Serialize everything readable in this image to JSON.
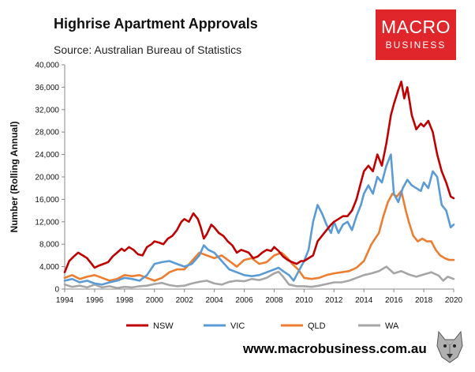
{
  "header": {
    "title": "Highrise Apartment Approvals",
    "source": "Source: Australian Bureau of Statistics"
  },
  "logo": {
    "line1": "MACRO",
    "line2": "BUSINESS",
    "color": "#e0262b"
  },
  "footer": {
    "url": "www.macrobusiness.com.au"
  },
  "chart_data": {
    "type": "line",
    "title": "Highrise Apartment Approvals",
    "xlabel": "",
    "ylabel": "Number (Rolling Annual)",
    "xlim": [
      1994,
      2020
    ],
    "ylim": [
      0,
      40000
    ],
    "yticks": [
      0,
      4000,
      8000,
      12000,
      16000,
      20000,
      24000,
      28000,
      32000,
      36000,
      40000
    ],
    "yticklabels": [
      "0",
      "4,000",
      "8,000",
      "12,000",
      "16,000",
      "20,000",
      "24,000",
      "28,000",
      "32,000",
      "36,000",
      "40,000"
    ],
    "xticks": [
      1994,
      1996,
      1998,
      2000,
      2002,
      2004,
      2006,
      2008,
      2010,
      2012,
      2014,
      2016,
      2018,
      2020
    ],
    "xticklabels": [
      "1994",
      "1996",
      "1998",
      "2000",
      "2002",
      "2004",
      "2006",
      "2008",
      "2010",
      "2012",
      "2014",
      "2016",
      "2018",
      "2020"
    ],
    "grid": false,
    "legend_position": "bottom",
    "series": [
      {
        "name": "NSW",
        "color": "#c00000",
        "x": [
          1994.0,
          1994.3,
          1994.6,
          1994.9,
          1995.2,
          1995.5,
          1995.8,
          1996.0,
          1996.3,
          1996.6,
          1996.9,
          1997.2,
          1997.5,
          1997.8,
          1998.0,
          1998.3,
          1998.6,
          1998.9,
          1999.2,
          1999.5,
          1999.8,
          2000.0,
          2000.3,
          2000.6,
          2000.9,
          2001.2,
          2001.5,
          2001.8,
          2002.0,
          2002.3,
          2002.6,
          2002.9,
          2003.1,
          2003.3,
          2003.5,
          2003.8,
          2004.0,
          2004.3,
          2004.6,
          2004.9,
          2005.2,
          2005.5,
          2005.8,
          2006.0,
          2006.3,
          2006.6,
          2006.9,
          2007.2,
          2007.5,
          2007.8,
          2008.0,
          2008.3,
          2008.6,
          2008.9,
          2009.2,
          2009.5,
          2009.8,
          2010.0,
          2010.3,
          2010.6,
          2010.9,
          2011.2,
          2011.5,
          2011.8,
          2012.0,
          2012.3,
          2012.6,
          2012.9,
          2013.2,
          2013.5,
          2013.8,
          2014.0,
          2014.3,
          2014.6,
          2014.9,
          2015.2,
          2015.5,
          2015.8,
          2016.0,
          2016.3,
          2016.5,
          2016.7,
          2016.9,
          2017.2,
          2017.5,
          2017.8,
          2018.0,
          2018.3,
          2018.6,
          2018.9,
          2019.2,
          2019.5,
          2019.8,
          2020.0
        ],
        "values": [
          3000,
          5000,
          5800,
          6500,
          6000,
          5500,
          4500,
          3800,
          4200,
          4500,
          4800,
          5800,
          6500,
          7200,
          6800,
          7500,
          7000,
          6200,
          6000,
          7500,
          8000,
          8500,
          8300,
          8000,
          9000,
          9500,
          10500,
          12000,
          12500,
          12000,
          13500,
          12500,
          11000,
          9000,
          9800,
          11500,
          11000,
          10000,
          9500,
          8500,
          7800,
          6500,
          7000,
          6800,
          6500,
          5500,
          5800,
          6500,
          7000,
          6800,
          7500,
          6800,
          5800,
          5200,
          4800,
          4500,
          5000,
          5000,
          5500,
          6000,
          8500,
          9500,
          10500,
          11500,
          12000,
          12500,
          13000,
          13000,
          14000,
          16000,
          19000,
          21000,
          22000,
          21000,
          24000,
          22000,
          26000,
          31000,
          33000,
          35500,
          37000,
          34000,
          36000,
          31000,
          28500,
          29500,
          29000,
          30000,
          28000,
          24000,
          21000,
          19000,
          16500,
          16200
        ]
      },
      {
        "name": "VIC",
        "color": "#5b9bd5",
        "x": [
          1994.0,
          1994.5,
          1995.0,
          1995.5,
          1996.0,
          1996.5,
          1997.0,
          1997.5,
          1998.0,
          1998.5,
          1999.0,
          1999.5,
          2000.0,
          2000.5,
          2001.0,
          2001.5,
          2002.0,
          2002.5,
          2003.0,
          2003.3,
          2003.6,
          2004.0,
          2004.5,
          2005.0,
          2005.5,
          2006.0,
          2006.5,
          2007.0,
          2007.5,
          2008.0,
          2008.3,
          2008.6,
          2009.0,
          2009.3,
          2009.6,
          2010.0,
          2010.3,
          2010.6,
          2010.9,
          2011.2,
          2011.5,
          2011.8,
          2012.0,
          2012.3,
          2012.6,
          2012.9,
          2013.2,
          2013.5,
          2013.8,
          2014.0,
          2014.3,
          2014.6,
          2014.9,
          2015.2,
          2015.5,
          2015.8,
          2016.0,
          2016.3,
          2016.6,
          2016.9,
          2017.2,
          2017.5,
          2017.8,
          2018.0,
          2018.3,
          2018.6,
          2018.9,
          2019.2,
          2019.5,
          2019.8,
          2020.0
        ],
        "values": [
          1500,
          1800,
          1200,
          1500,
          1000,
          800,
          1200,
          1500,
          2000,
          1800,
          1500,
          2500,
          4500,
          4800,
          5000,
          4500,
          4000,
          4500,
          6000,
          7800,
          7000,
          6500,
          5000,
          3500,
          3000,
          2500,
          2300,
          2500,
          3000,
          3500,
          3800,
          3200,
          2500,
          1500,
          3000,
          5000,
          7000,
          12000,
          15000,
          13500,
          11500,
          10000,
          12000,
          10000,
          11500,
          12000,
          10500,
          13000,
          15000,
          17000,
          18500,
          17000,
          20000,
          19000,
          22000,
          24000,
          17000,
          15500,
          18000,
          19500,
          18500,
          18000,
          17500,
          19000,
          18000,
          21000,
          20000,
          15000,
          14000,
          11000,
          11500
        ]
      },
      {
        "name": "QLD",
        "color": "#ed7d31",
        "x": [
          1994.0,
          1994.5,
          1995.0,
          1995.5,
          1996.0,
          1996.5,
          1997.0,
          1997.5,
          1998.0,
          1998.5,
          1999.0,
          1999.5,
          2000.0,
          2000.5,
          2001.0,
          2001.5,
          2002.0,
          2002.5,
          2003.0,
          2003.5,
          2004.0,
          2004.5,
          2005.0,
          2005.5,
          2006.0,
          2006.5,
          2007.0,
          2007.5,
          2008.0,
          2008.5,
          2008.9,
          2009.2,
          2009.6,
          2010.0,
          2010.5,
          2011.0,
          2011.5,
          2012.0,
          2012.5,
          2013.0,
          2013.5,
          2014.0,
          2014.5,
          2015.0,
          2015.3,
          2015.6,
          2015.9,
          2016.2,
          2016.5,
          2016.8,
          2017.0,
          2017.3,
          2017.6,
          2017.9,
          2018.2,
          2018.5,
          2018.8,
          2019.1,
          2019.4,
          2019.7,
          2020.0
        ],
        "values": [
          2000,
          2500,
          1800,
          2200,
          2500,
          2000,
          1500,
          1800,
          2500,
          2300,
          2500,
          2000,
          1500,
          2000,
          3000,
          3500,
          3500,
          5000,
          6500,
          6000,
          5500,
          6000,
          5000,
          4000,
          5200,
          5500,
          4500,
          4800,
          6000,
          6500,
          5500,
          4500,
          3500,
          2000,
          1800,
          2000,
          2500,
          2800,
          3000,
          3200,
          3800,
          5000,
          8000,
          10000,
          13000,
          15500,
          17000,
          16500,
          17500,
          14000,
          12000,
          9500,
          8500,
          9000,
          8500,
          8500,
          7000,
          6000,
          5500,
          5200,
          5200
        ]
      },
      {
        "name": "WA",
        "color": "#a6a6a6",
        "x": [
          1994.0,
          1994.5,
          1995.0,
          1995.5,
          1996.0,
          1996.5,
          1997.0,
          1997.5,
          1998.0,
          1998.5,
          1999.0,
          1999.5,
          2000.0,
          2000.5,
          2001.0,
          2001.5,
          2002.0,
          2002.5,
          2003.0,
          2003.5,
          2004.0,
          2004.5,
          2005.0,
          2005.5,
          2006.0,
          2006.5,
          2007.0,
          2007.5,
          2008.0,
          2008.3,
          2008.6,
          2009.0,
          2009.5,
          2010.0,
          2010.5,
          2011.0,
          2011.5,
          2012.0,
          2012.5,
          2013.0,
          2013.5,
          2014.0,
          2014.5,
          2015.0,
          2015.5,
          2016.0,
          2016.5,
          2017.0,
          2017.5,
          2018.0,
          2018.5,
          2019.0,
          2019.3,
          2019.6,
          2020.0
        ],
        "values": [
          800,
          400,
          600,
          300,
          800,
          300,
          500,
          200,
          400,
          300,
          500,
          600,
          900,
          1100,
          700,
          500,
          600,
          1000,
          1300,
          1500,
          1000,
          800,
          1300,
          1500,
          1400,
          1800,
          1600,
          2000,
          2800,
          3100,
          2200,
          800,
          500,
          500,
          400,
          600,
          900,
          1200,
          1200,
          1500,
          2000,
          2500,
          2800,
          3200,
          4000,
          2800,
          3200,
          2600,
          2200,
          2600,
          3000,
          2400,
          1500,
          2200,
          1800
        ]
      }
    ]
  }
}
